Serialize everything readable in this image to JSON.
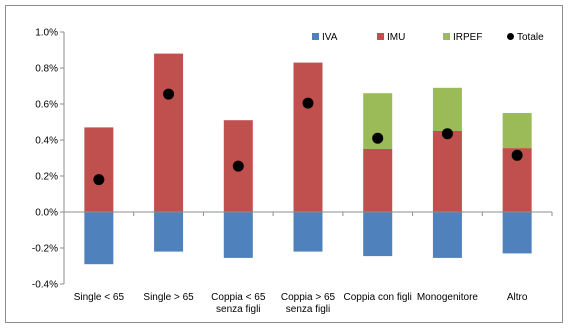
{
  "chart_data": {
    "type": "bar",
    "stacked": true,
    "categories": [
      [
        "Single < 65"
      ],
      [
        "Single > 65"
      ],
      [
        "Coppia < 65",
        "senza figli"
      ],
      [
        "Coppia > 65",
        "senza figli"
      ],
      [
        "Coppia con figli"
      ],
      [
        "Monogenitore"
      ],
      [
        "Altro"
      ]
    ],
    "series": [
      {
        "name": "IVA",
        "color": "#4f81bd",
        "values": [
          -0.29,
          -0.22,
          -0.255,
          -0.22,
          -0.245,
          -0.255,
          -0.23
        ]
      },
      {
        "name": "IMU",
        "color": "#c0504d",
        "values": [
          0.47,
          0.88,
          0.51,
          0.83,
          0.35,
          0.45,
          0.355
        ]
      },
      {
        "name": "IRPEF",
        "color": "#9bbb59",
        "values": [
          0,
          0,
          0,
          0,
          0.31,
          0.24,
          0.195
        ]
      }
    ],
    "total": {
      "name": "Totale",
      "color": "#000000",
      "values": [
        0.18,
        0.655,
        0.255,
        0.605,
        0.41,
        0.435,
        0.315
      ]
    },
    "ylim": [
      -0.4,
      1.0
    ],
    "yticks": [
      "-0.4%",
      "-0.2%",
      "0.0%",
      "0.2%",
      "0.4%",
      "0.6%",
      "0.8%",
      "1.0%"
    ],
    "title": "",
    "xlabel": "",
    "ylabel": "",
    "grid": false,
    "legend_placement": "top-right"
  }
}
